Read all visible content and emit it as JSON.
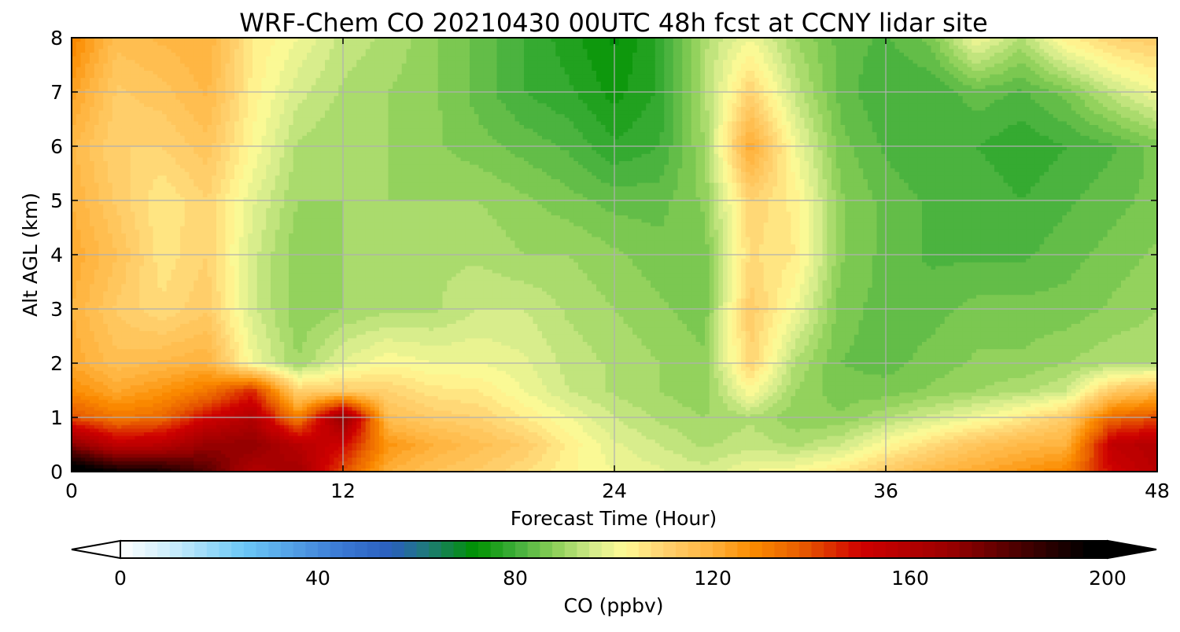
{
  "chart_data": {
    "type": "heatmap",
    "title": "WRF-Chem CO  20210430 00UTC 48h fcst at CCNY lidar site",
    "xlabel": "Forecast Time (Hour)",
    "ylabel": "Alt AGL (km)",
    "xlim": [
      0,
      48
    ],
    "ylim": [
      0,
      8
    ],
    "xticks": [
      0,
      12,
      24,
      36,
      48
    ],
    "yticks": [
      0,
      1,
      2,
      3,
      4,
      5,
      6,
      7,
      8
    ],
    "grid": true,
    "x": [
      0,
      2,
      4,
      6,
      8,
      10,
      12,
      14,
      16,
      18,
      20,
      22,
      24,
      26,
      28,
      30,
      32,
      34,
      36,
      38,
      40,
      42,
      44,
      46,
      48
    ],
    "y": [
      0,
      0.5,
      1,
      1.5,
      2,
      3,
      4,
      5,
      6,
      7,
      8
    ],
    "z": [
      [
        205,
        195,
        192,
        180,
        160,
        165,
        140,
        120,
        115,
        112,
        108,
        103,
        100,
        98,
        96,
        100,
        102,
        106,
        112,
        118,
        122,
        126,
        130,
        150,
        158
      ],
      [
        172,
        155,
        158,
        168,
        170,
        158,
        150,
        126,
        120,
        116,
        112,
        104,
        98,
        95,
        92,
        94,
        92,
        95,
        102,
        108,
        114,
        118,
        120,
        155,
        160
      ],
      [
        140,
        132,
        135,
        150,
        160,
        130,
        170,
        116,
        112,
        110,
        105,
        100,
        95,
        92,
        90,
        92,
        88,
        88,
        92,
        96,
        100,
        105,
        112,
        135,
        140
      ],
      [
        128,
        122,
        126,
        132,
        145,
        110,
        112,
        110,
        106,
        105,
        100,
        95,
        92,
        90,
        88,
        102,
        90,
        86,
        86,
        88,
        90,
        92,
        95,
        112,
        118
      ],
      [
        122,
        116,
        118,
        120,
        100,
        90,
        98,
        102,
        100,
        100,
        98,
        94,
        92,
        90,
        88,
        110,
        92,
        85,
        84,
        86,
        88,
        88,
        90,
        92,
        92
      ],
      [
        120,
        112,
        108,
        112,
        96,
        88,
        90,
        92,
        92,
        95,
        95,
        92,
        90,
        88,
        86,
        112,
        100,
        86,
        84,
        84,
        86,
        86,
        86,
        88,
        90
      ],
      [
        122,
        115,
        106,
        110,
        96,
        88,
        90,
        90,
        92,
        92,
        90,
        90,
        88,
        86,
        86,
        108,
        105,
        88,
        84,
        82,
        82,
        82,
        84,
        86,
        88
      ],
      [
        120,
        112,
        105,
        110,
        98,
        90,
        90,
        90,
        90,
        90,
        88,
        86,
        84,
        84,
        88,
        110,
        104,
        88,
        84,
        82,
        82,
        80,
        82,
        84,
        86
      ],
      [
        118,
        110,
        110,
        114,
        102,
        92,
        90,
        90,
        88,
        86,
        84,
        82,
        78,
        80,
        90,
        122,
        100,
        86,
        82,
        80,
        80,
        78,
        80,
        82,
        86
      ],
      [
        124,
        112,
        114,
        118,
        104,
        96,
        92,
        90,
        88,
        84,
        80,
        78,
        74,
        78,
        92,
        110,
        94,
        84,
        80,
        80,
        84,
        82,
        86,
        94,
        100
      ],
      [
        130,
        116,
        118,
        120,
        105,
        100,
        94,
        92,
        88,
        84,
        80,
        76,
        72,
        78,
        92,
        100,
        90,
        84,
        82,
        86,
        100,
        92,
        104,
        110,
        112
      ]
    ],
    "colorbar": {
      "label": "CO  (ppbv)",
      "min": 0,
      "max": 200,
      "step": 2.5,
      "ticks": [
        0,
        40,
        80,
        120,
        160,
        200
      ],
      "extend": "both",
      "color_stops": [
        {
          "v": 0,
          "c": "#ffffff"
        },
        {
          "v": 10,
          "c": "#cdeefc"
        },
        {
          "v": 25,
          "c": "#6cc8f7"
        },
        {
          "v": 45,
          "c": "#3a78d4"
        },
        {
          "v": 55,
          "c": "#2a5fbc"
        },
        {
          "v": 62,
          "c": "#1f7a7a"
        },
        {
          "v": 72,
          "c": "#009200"
        },
        {
          "v": 80,
          "c": "#3fae3a"
        },
        {
          "v": 88,
          "c": "#8ccf58"
        },
        {
          "v": 96,
          "c": "#d6ec8c"
        },
        {
          "v": 102,
          "c": "#fffb96"
        },
        {
          "v": 110,
          "c": "#ffd270"
        },
        {
          "v": 120,
          "c": "#ffb23c"
        },
        {
          "v": 128,
          "c": "#fb8c00"
        },
        {
          "v": 138,
          "c": "#e85c00"
        },
        {
          "v": 150,
          "c": "#cf0000"
        },
        {
          "v": 168,
          "c": "#9a0000"
        },
        {
          "v": 182,
          "c": "#4a0000"
        },
        {
          "v": 196,
          "c": "#000000"
        },
        {
          "v": 200,
          "c": "#000000"
        }
      ]
    }
  }
}
